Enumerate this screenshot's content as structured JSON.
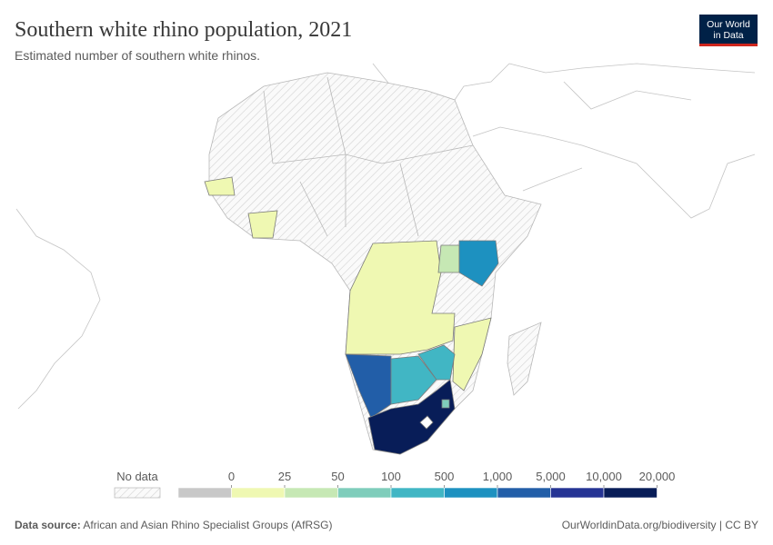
{
  "chart_data": {
    "type": "choropleth",
    "title": "Southern white rhino population, 2021",
    "subtitle": "Estimated number of southern white rhinos.",
    "logo": [
      "Our World",
      "in Data"
    ],
    "no_data_label": "No data",
    "zero_color": "#c8c8c8",
    "legend_ticks": [
      0,
      25,
      50,
      100,
      500,
      {
        "value": 1000,
        "label": "1,000"
      },
      {
        "value": 5000,
        "label": "5,000"
      },
      {
        "value": 10000,
        "label": "10,000"
      },
      {
        "value": 20000,
        "label": "20,000"
      }
    ],
    "legend_colors": [
      "#eff8b2",
      "#c6e8b4",
      "#7fcdbb",
      "#41b6c4",
      "#1d91c0",
      "#225ea8",
      "#253494",
      "#081d58"
    ],
    "source_label": "Data source:",
    "source": "African and Asian Rhino Specialist Groups (AfRSG)",
    "credit": "OurWorldinData.org/biodiversity | CC BY"
  }
}
